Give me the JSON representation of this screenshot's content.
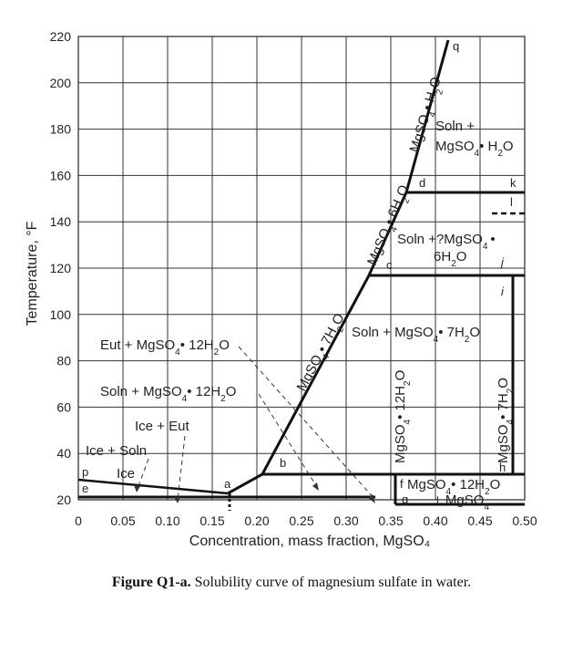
{
  "axes": {
    "x_title": "Concentration, mass fraction, MgSO₄",
    "y_title": "Temperature, °F",
    "x_ticks": [
      "0",
      "0.05",
      "0.10",
      "0.15",
      "0.20",
      "0.25",
      "0.30",
      "0.35",
      "0.40",
      "0.45",
      "0.50"
    ],
    "y_ticks": [
      "20",
      "40",
      "60",
      "80",
      "100",
      "120",
      "140",
      "160",
      "180",
      "200",
      "220"
    ],
    "x_range": [
      0,
      0.5
    ],
    "y_range": [
      20,
      220
    ],
    "grid": true
  },
  "curves": {
    "ice_line": [
      [
        0,
        32
      ],
      [
        0.17,
        25
      ]
    ],
    "heptahydrate_line": [
      [
        0.17,
        25
      ],
      [
        0.21,
        35
      ],
      [
        0.33,
        118
      ]
    ],
    "hexahydrate_line": [
      [
        0.33,
        118
      ],
      [
        0.36,
        154
      ]
    ],
    "monohydrate_line": [
      [
        0.36,
        154
      ],
      [
        0.42,
        222
      ]
    ],
    "eutectic_line": [
      0,
      25,
      0.33
    ],
    "transition_lines": [
      {
        "y": 35,
        "x_from": 0.21,
        "x_to": 0.5
      },
      {
        "y": 118,
        "x_from": 0.33,
        "x_to": 0.5
      },
      {
        "y": 154,
        "x_from": 0.36,
        "x_to": 0.5
      }
    ],
    "hydrate_12": {
      "x": 0.35,
      "y_from": 25,
      "y_to": 35
    },
    "hydrate_7": {
      "x": 0.488,
      "y_from": 35,
      "y_to": 118
    }
  },
  "point_labels": {
    "a": "a",
    "b": "b",
    "c": "c",
    "d": "d",
    "e": "e",
    "f": "f",
    "g": "g",
    "h": "h",
    "i": "i",
    "j": "j",
    "k": "k",
    "l": "l",
    "p": "p",
    "q": "q"
  },
  "region_labels": {
    "eut_12h2o": {
      "pre": "Eut + MgSO",
      "sub1": "4",
      "mid": "• 12H",
      "sub2": "2",
      "post": "O"
    },
    "soln_12h2o": {
      "pre": "Soln + MgSO",
      "sub1": "4",
      "mid": "• 12H",
      "sub2": "2",
      "post": "O"
    },
    "ice_eut": "Ice + Eut",
    "ice_soln": "Ice + Soln",
    "ice": "Ice",
    "soln_7h2o": {
      "pre": "Soln + MgSO",
      "sub1": "4",
      "mid": "• 7H",
      "sub2": "2",
      "post": "O"
    },
    "soln_6h2o_line1": "Soln +?MgSO",
    "soln_6h2o_line1_sub": "4",
    "soln_6h2o_line1_end": "•",
    "soln_6h2o_line2": {
      "pre": "6H",
      "sub": "2",
      "post": "O"
    },
    "soln_h2o_line1": "Soln +",
    "soln_h2o_line2": {
      "pre": "MgSO",
      "sub1": "4",
      "mid": "• H",
      "sub2": "2",
      "post": "O"
    },
    "mix_line1": {
      "pre": "MgSO",
      "sub1": "4",
      "mid": "• 12H",
      "sub2": "2",
      "post": "O"
    },
    "mix_line2": {
      "pre": "+ MgSO",
      "sub": "4"
    }
  },
  "line_labels": {
    "mgso4_7h2o": {
      "pre": "MgSO",
      "sub1": "4",
      "mid": "• 7H",
      "sub2": "2",
      "post": "O"
    },
    "mgso4_6h2o": {
      "pre": "MgSO",
      "sub1": "4",
      "mid": "• 6H",
      "sub2": "2",
      "post": "O"
    },
    "mgso4_h2o": {
      "pre": "MgSO",
      "sub1": "4",
      "mid": "• H",
      "sub2": "2",
      "post": "O"
    },
    "mgso4_12h2o_vert": {
      "pre": "MgSO",
      "sub1": "4",
      "mid": "• 12H",
      "sub2": "2",
      "post": "O"
    },
    "mgso4_7h2o_vert": {
      "pre": "MgSO",
      "sub1": "4",
      "mid": "• 7H",
      "sub2": "2",
      "post": "O"
    }
  },
  "caption": {
    "label": "Figure Q1-a.",
    "text": " Solubility curve of magnesium sulfate in water."
  }
}
